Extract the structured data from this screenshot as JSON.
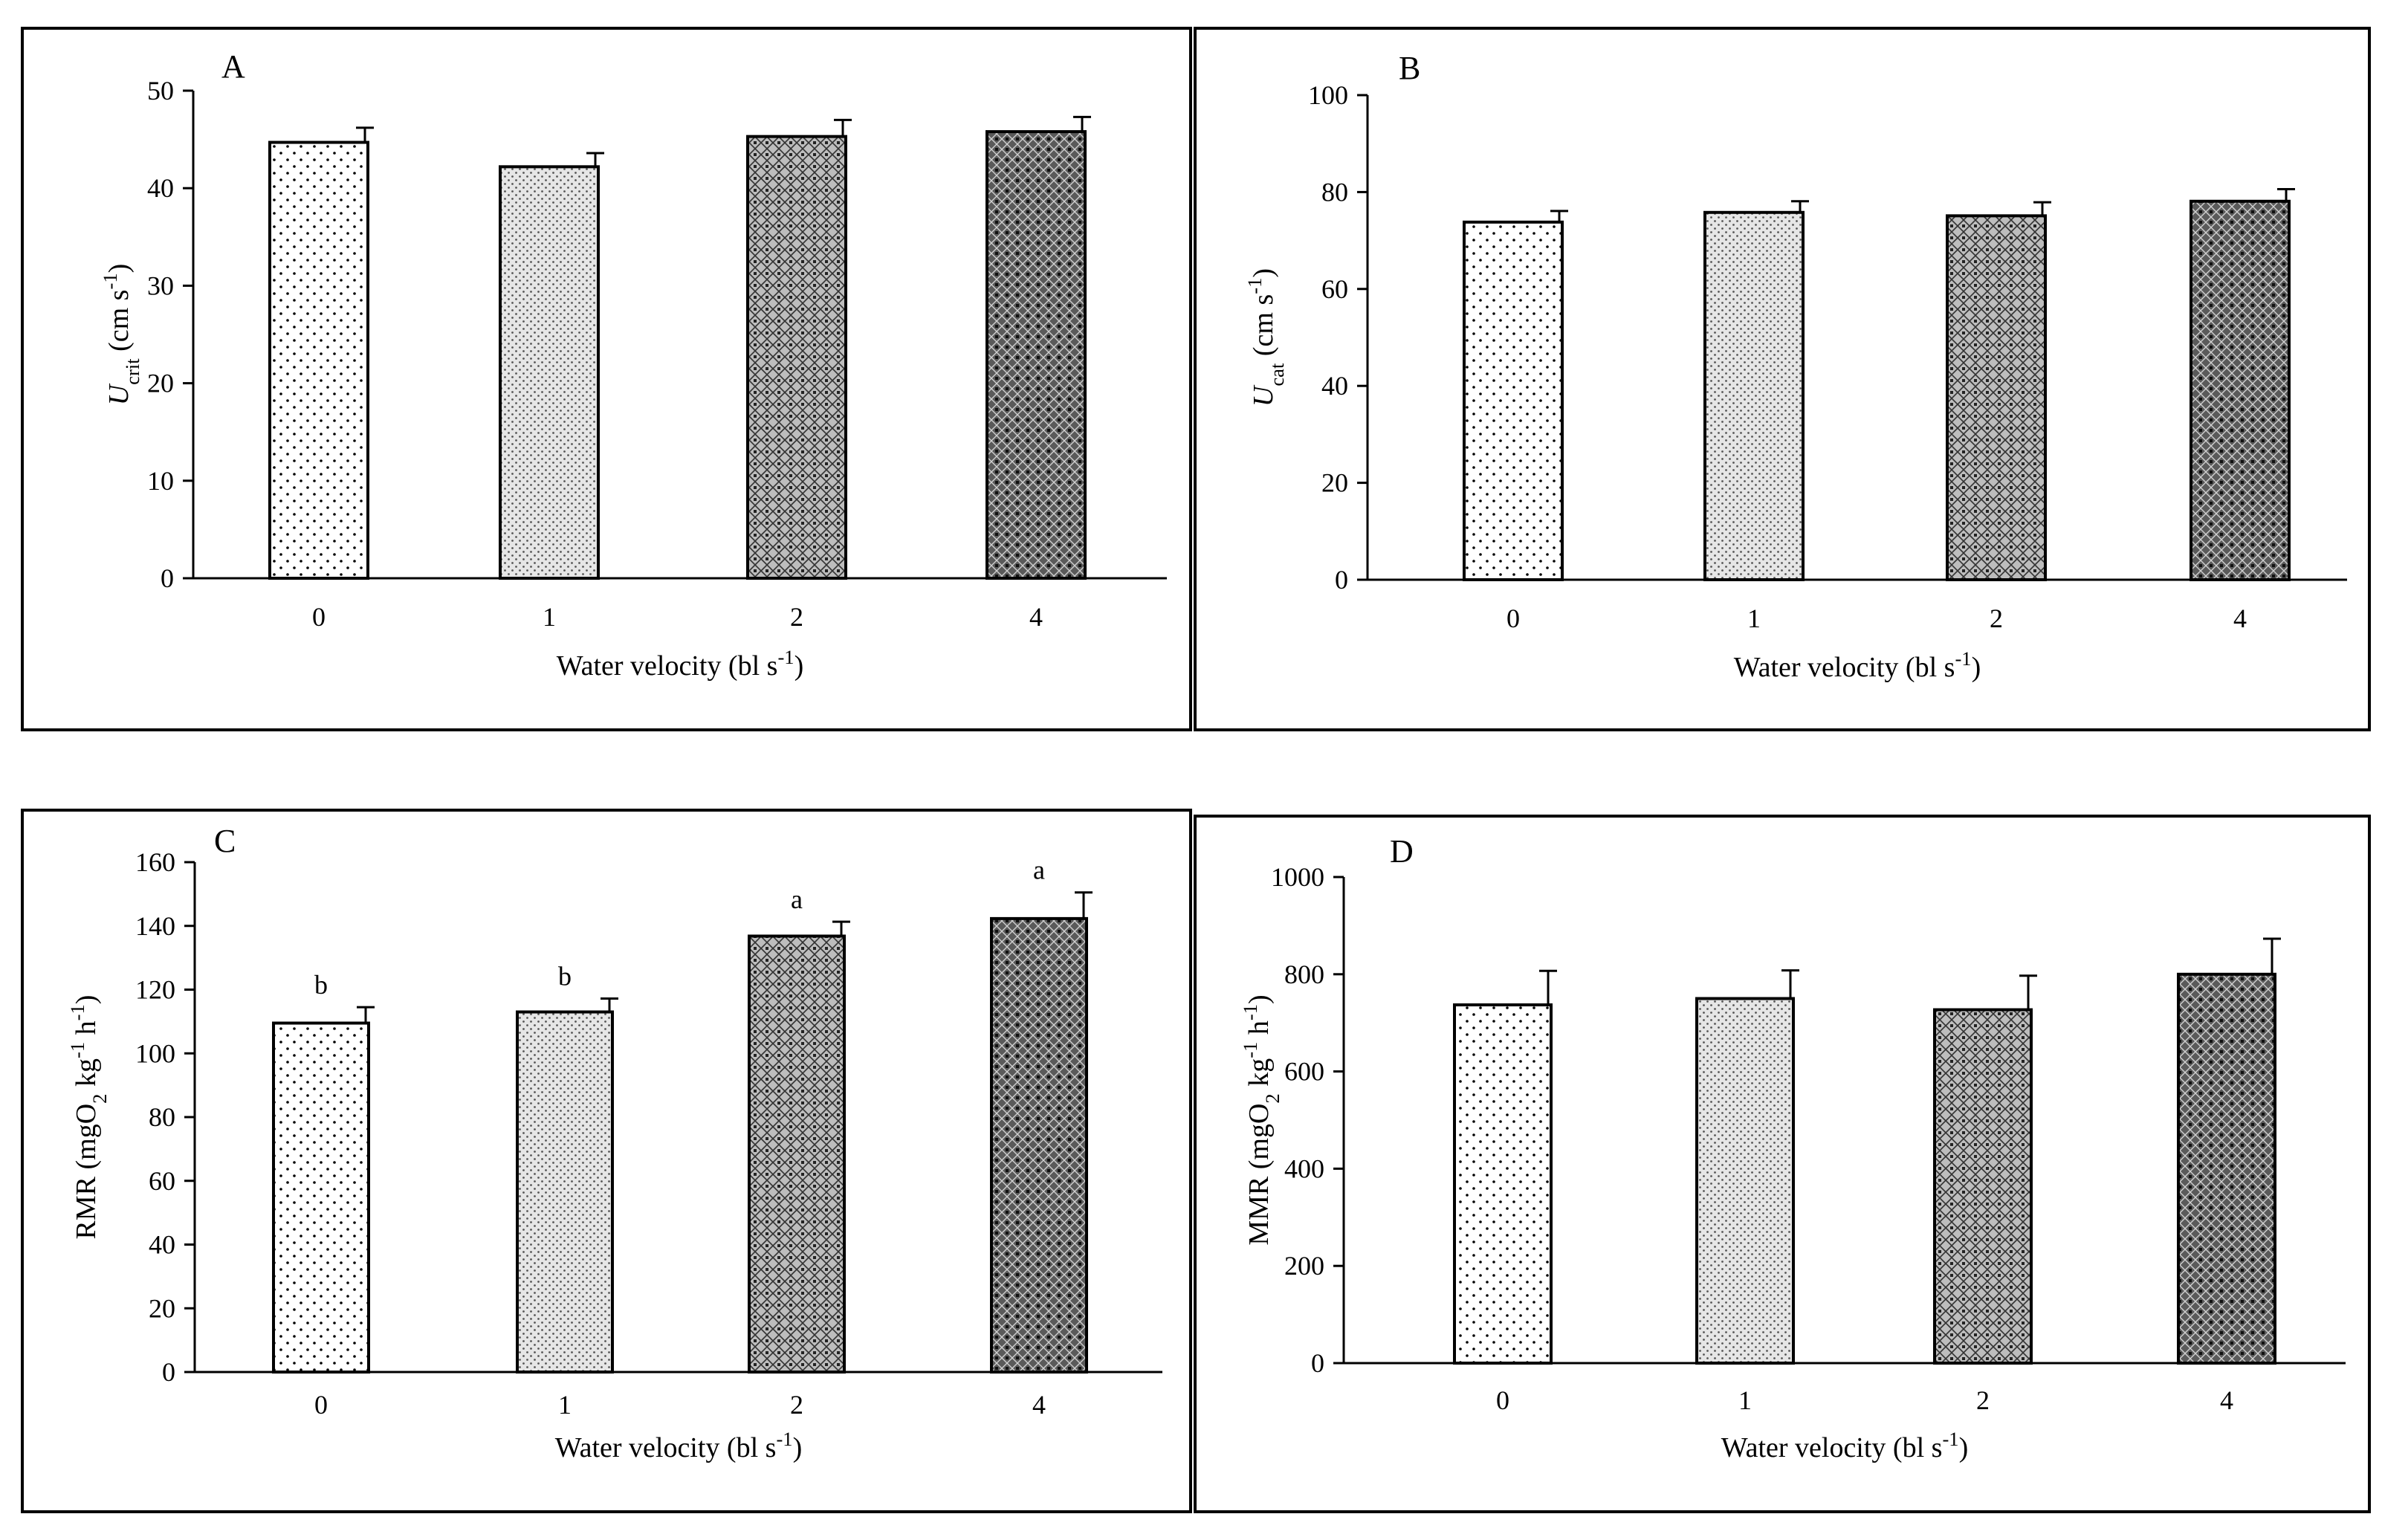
{
  "chart_data": [
    {
      "panel": "A",
      "type": "bar",
      "title": "",
      "ylabel": {
        "main": "U",
        "sub": "crit",
        "rest": " (cm s",
        "sup": "-1",
        "end": ")"
      },
      "xlabel": {
        "main": "Water velocity (bl s",
        "sup": "-1",
        "end": ")"
      },
      "categories": [
        "0",
        "1",
        "2",
        "4"
      ],
      "values": [
        44.7,
        42.2,
        45.3,
        45.8
      ],
      "errors": [
        1.5,
        1.4,
        1.7,
        1.5
      ],
      "sig_letters": [
        "",
        "",
        "",
        ""
      ],
      "ylim": [
        0,
        50
      ],
      "yticks": [
        0,
        10,
        20,
        30,
        40,
        50
      ],
      "ytick_labels": [
        "0",
        "10",
        "20",
        "30",
        "40",
        "50"
      ],
      "grid": false
    },
    {
      "panel": "B",
      "type": "bar",
      "title": "",
      "ylabel": {
        "main": "U",
        "sub": "cat",
        "rest": " (cm s",
        "sup": "-1",
        "end": ")"
      },
      "xlabel": {
        "main": "Water velocity (bl s",
        "sup": "-1",
        "end": ")"
      },
      "categories": [
        "0",
        "1",
        "2",
        "4"
      ],
      "values": [
        73.8,
        75.8,
        75.1,
        78.1
      ],
      "errors": [
        2.3,
        2.3,
        2.8,
        2.5
      ],
      "sig_letters": [
        "",
        "",
        "",
        ""
      ],
      "ylim": [
        0,
        100
      ],
      "yticks": [
        0,
        20,
        40,
        60,
        80,
        100
      ],
      "ytick_labels": [
        "0",
        "20",
        "40",
        "60",
        "80",
        "100"
      ],
      "grid": false
    },
    {
      "panel": "C",
      "type": "bar",
      "title": "",
      "ylabel": {
        "main": "RMR (mgO",
        "sub": "2",
        "rest": " kg",
        "sup": "-1",
        "rest2": " h",
        "sup2": "-1",
        "end": ")"
      },
      "xlabel": {
        "main": "Water velocity (bl s",
        "sup": "-1",
        "end": ")"
      },
      "categories": [
        "0",
        "1",
        "2",
        "4"
      ],
      "values": [
        109.5,
        113.0,
        136.8,
        142.3
      ],
      "errors": [
        5.0,
        4.2,
        4.5,
        8.2
      ],
      "sig_letters": [
        "b",
        "b",
        "a",
        "a"
      ],
      "ylim": [
        0,
        160
      ],
      "yticks": [
        0,
        20,
        40,
        60,
        80,
        100,
        120,
        140,
        160
      ],
      "ytick_labels": [
        "0",
        "20",
        "40",
        "60",
        "80",
        "100",
        "120",
        "140",
        "160"
      ],
      "grid": false
    },
    {
      "panel": "D",
      "type": "bar",
      "title": "",
      "ylabel": {
        "main": "MMR (mgO",
        "sub": "2",
        "rest": " kg",
        "sup": "-1",
        "rest2": " h",
        "sup2": "-1",
        "end": ")"
      },
      "xlabel": {
        "main": "Water velocity (bl s",
        "sup": "-1",
        "end": ")"
      },
      "categories": [
        "0",
        "1",
        "2",
        "4"
      ],
      "values": [
        737,
        750,
        727,
        800
      ],
      "errors": [
        70,
        58,
        70,
        73
      ],
      "sig_letters": [
        "",
        "",
        "",
        ""
      ],
      "ylim": [
        0,
        1000
      ],
      "yticks": [
        0,
        200,
        400,
        600,
        800,
        1000
      ],
      "ytick_labels": [
        "0",
        "200",
        "400",
        "600",
        "800",
        "1000"
      ],
      "grid": false
    }
  ]
}
